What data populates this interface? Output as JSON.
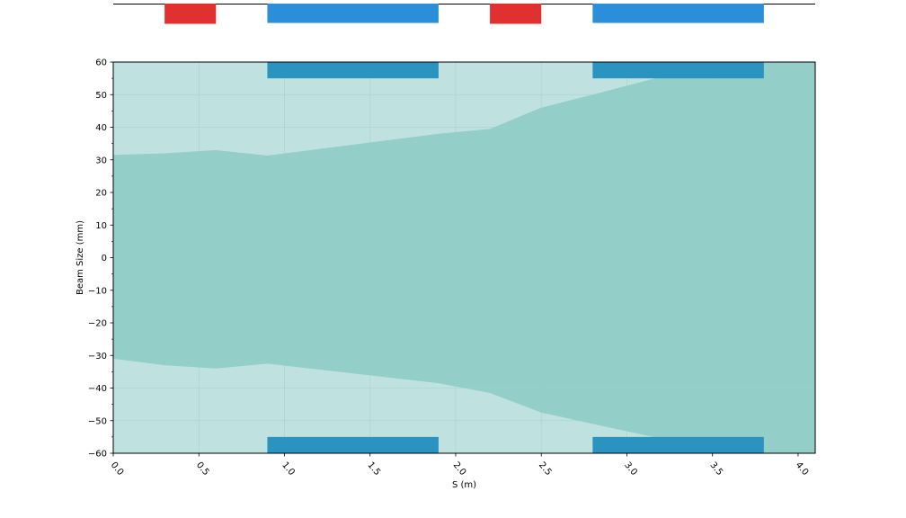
{
  "chart_data": {
    "type": "area",
    "title": "",
    "xlabel": "S (m)",
    "ylabel": "Beam Size (mm)",
    "xlim": [
      0,
      4.1
    ],
    "ylim": [
      -60,
      60
    ],
    "x_ticks": [
      "0.0",
      "0.5",
      "1.0",
      "1.5",
      "2.0",
      "2.5",
      "3.0",
      "3.5",
      "4.0"
    ],
    "x_tick_values": [
      0,
      0.5,
      1.0,
      1.5,
      2.0,
      2.5,
      3.0,
      3.5,
      4.0
    ],
    "y_ticks": [
      "60",
      "50",
      "40",
      "30",
      "20",
      "10",
      "0",
      "−10",
      "−20",
      "−30",
      "−40",
      "−50",
      "−60"
    ],
    "y_tick_values": [
      60,
      50,
      40,
      30,
      20,
      10,
      0,
      -10,
      -20,
      -30,
      -40,
      -50,
      -60
    ],
    "grid": true,
    "series": [
      {
        "kind": "outer_envelope",
        "color": "#bfe2e0",
        "x": [
          0,
          0.3,
          0.6,
          0.9,
          1.9,
          2.2,
          2.5,
          2.8,
          3.2,
          3.8,
          4.1
        ],
        "upper": [
          60,
          60,
          60,
          60,
          60,
          60,
          60,
          60,
          60,
          60,
          60
        ],
        "lower": [
          -60,
          -60,
          -60,
          -60,
          -60,
          -60,
          -60,
          -60,
          -60,
          -60,
          -60
        ]
      },
      {
        "kind": "beam_envelope",
        "color": "#93cec8",
        "x": [
          0,
          0.3,
          0.6,
          0.9,
          1.9,
          2.2,
          2.5,
          2.8,
          3.2,
          3.8,
          4.1
        ],
        "upper": [
          31.5,
          32,
          33,
          31.3,
          38,
          39.5,
          46,
          50,
          55.5,
          60,
          60
        ],
        "lower": [
          -31,
          -33,
          -34,
          -32.5,
          -38.5,
          -41.5,
          -47.5,
          -51,
          -55.5,
          -60,
          -60
        ]
      }
    ],
    "apertures": [
      {
        "x_start": 0.9,
        "x_end": 1.9,
        "y_top": 60,
        "y_bottom": 55,
        "color": "#2a93bf"
      },
      {
        "x_start": 2.8,
        "x_end": 3.8,
        "y_top": 60,
        "y_bottom": 55,
        "color": "#2a93bf"
      },
      {
        "x_start": 0.9,
        "x_end": 1.9,
        "y_top": -55,
        "y_bottom": -60,
        "color": "#2a93bf"
      },
      {
        "x_start": 2.8,
        "x_end": 3.8,
        "y_top": -55,
        "y_bottom": -60,
        "color": "#2a93bf"
      }
    ],
    "lattice": [
      {
        "kind": "dipole",
        "x_start": 0.3,
        "x_end": 0.6,
        "color": "#e03030"
      },
      {
        "kind": "quadrupole",
        "x_start": 0.9,
        "x_end": 1.9,
        "color": "#2a8fd8"
      },
      {
        "kind": "dipole",
        "x_start": 2.2,
        "x_end": 2.5,
        "color": "#e03030"
      },
      {
        "kind": "quadrupole",
        "x_start": 2.8,
        "x_end": 3.8,
        "color": "#2a8fd8"
      }
    ]
  }
}
